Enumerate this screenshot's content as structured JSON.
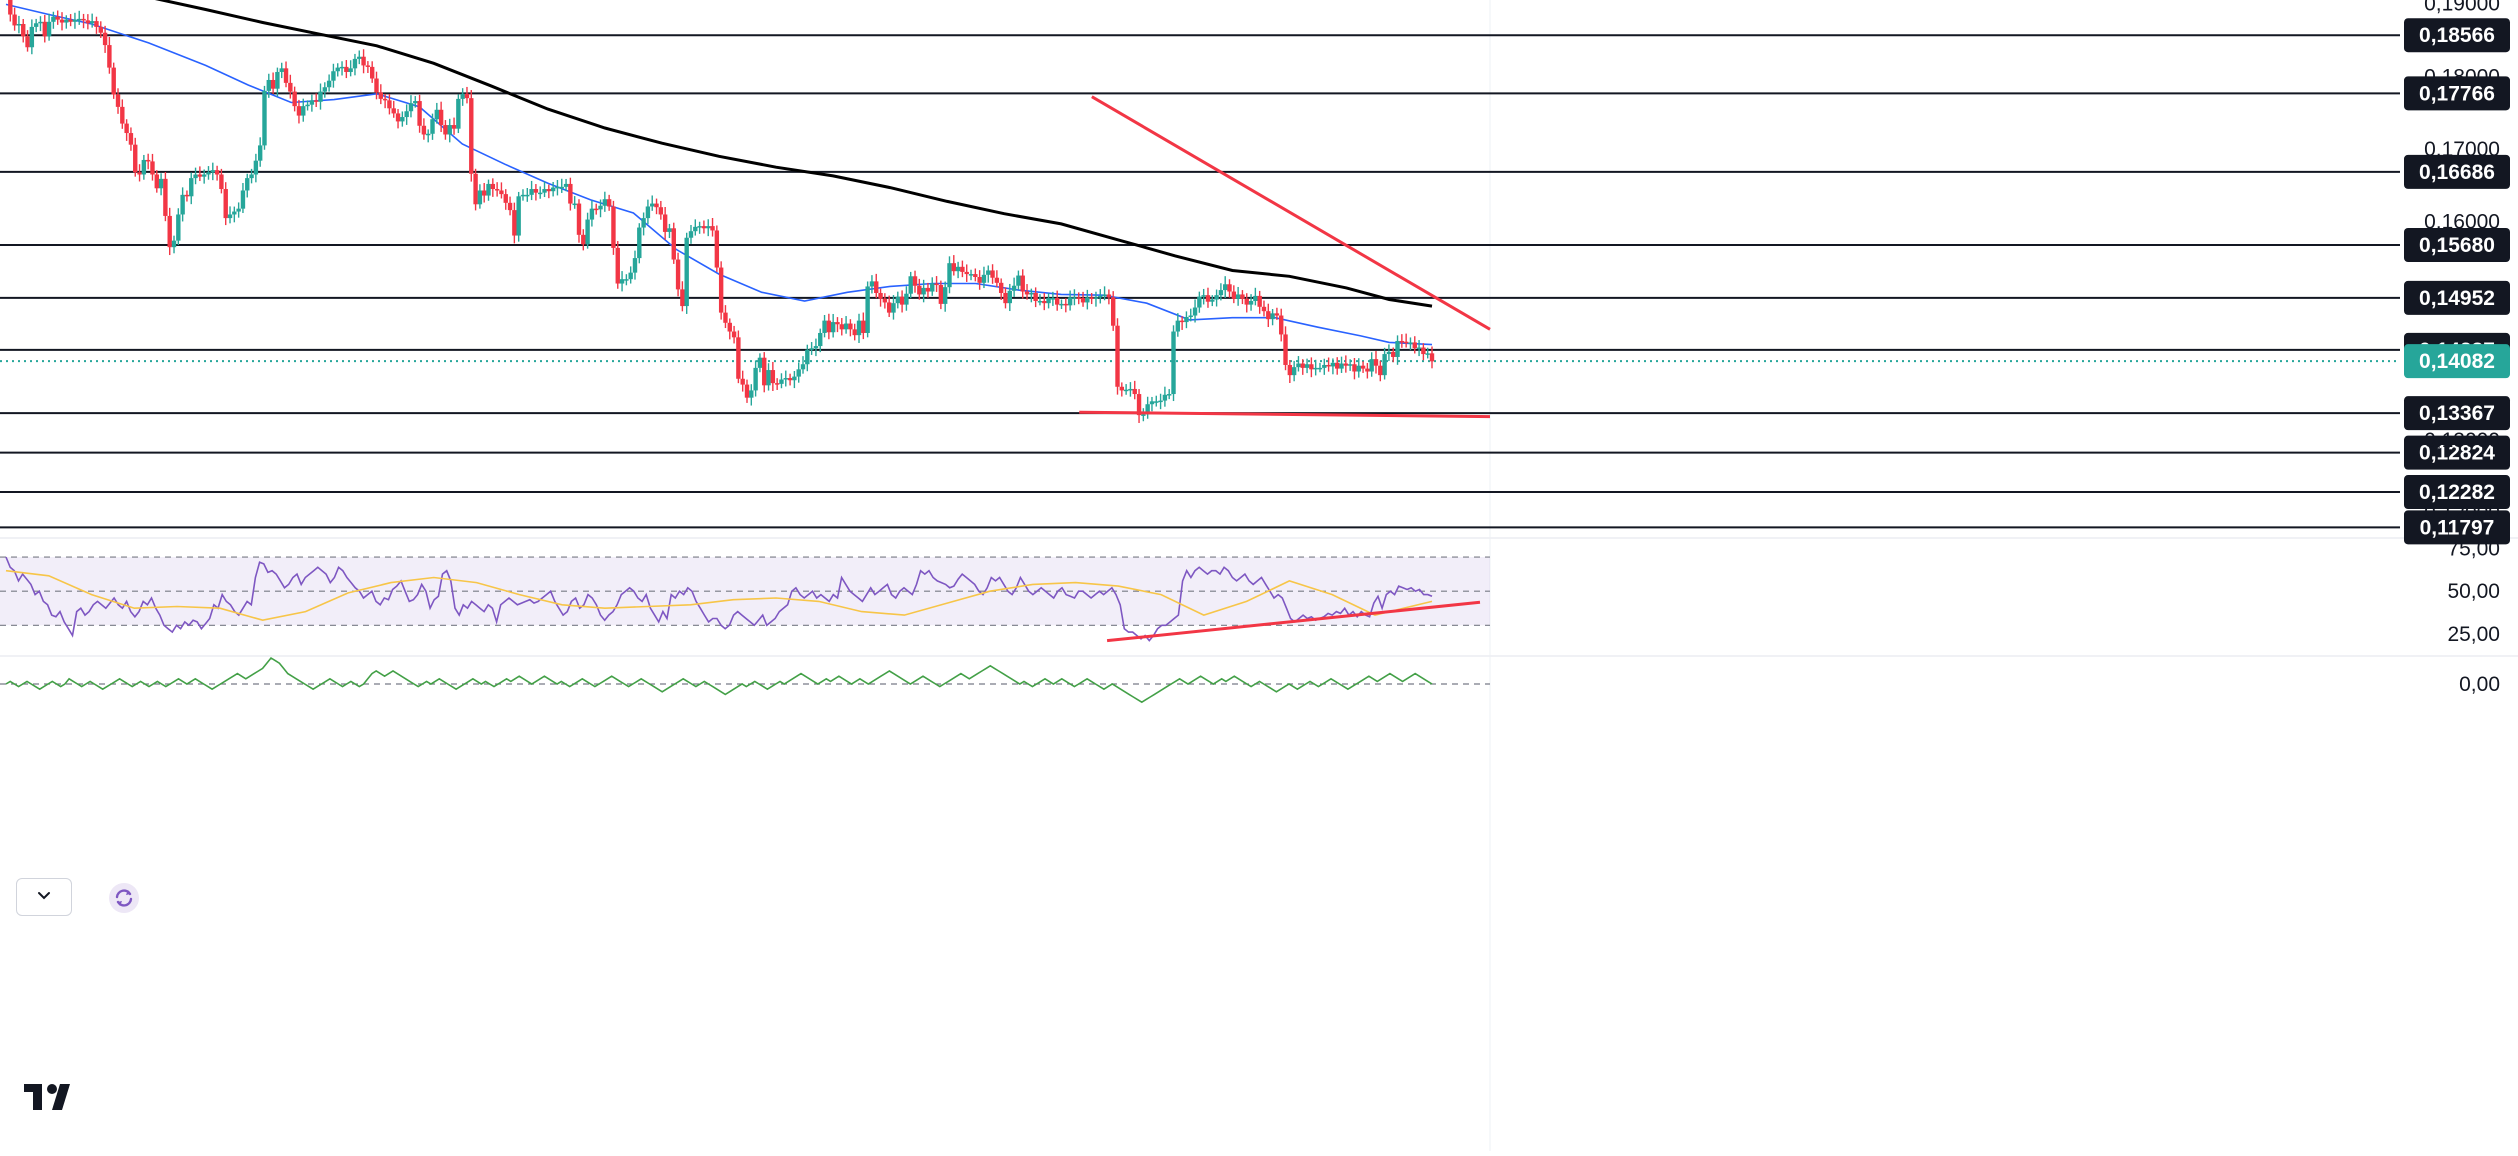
{
  "chart_data": {
    "type": "candlestick",
    "price_axis": {
      "ticks": [
        "0,19000",
        "0,18000",
        "0,17000",
        "0,16000",
        "0,13000",
        "0,12000"
      ],
      "tick_values": [
        0.19,
        0.18,
        0.17,
        0.16,
        0.13,
        0.12
      ],
      "ylim": [
        0.1165,
        0.1905
      ]
    },
    "horizontal_levels": [
      {
        "label": "0,18566",
        "value": 0.18566
      },
      {
        "label": "0,17766",
        "value": 0.17766
      },
      {
        "label": "0,16686",
        "value": 0.16686
      },
      {
        "label": "0,15680",
        "value": 0.1568
      },
      {
        "label": "0,14952",
        "value": 0.14952
      },
      {
        "label": "0,14237",
        "value": 0.14237
      },
      {
        "label": "0,13367",
        "value": 0.13367
      },
      {
        "label": "0,12824",
        "value": 0.12824
      },
      {
        "label": "0,12282",
        "value": 0.12282
      },
      {
        "label": "0,11797",
        "value": 0.11797
      }
    ],
    "last_price": {
      "label": "0,14082",
      "value": 0.14082,
      "color": "#26a69a"
    },
    "price_series": [
      0.1905,
      0.1885,
      0.187,
      0.1872,
      0.1855,
      0.184,
      0.1868,
      0.1873,
      0.1875,
      0.1855,
      0.1875,
      0.1882,
      0.1878,
      0.1874,
      0.1878,
      0.1875,
      0.1878,
      0.1879,
      0.1877,
      0.1873,
      0.1876,
      0.1868,
      0.186,
      0.1843,
      0.1812,
      0.1775,
      0.1758,
      0.1735,
      0.1722,
      0.1706,
      0.1668,
      0.1665,
      0.1685,
      0.1683,
      0.1665,
      0.1646,
      0.1659,
      0.1608,
      0.1565,
      0.1574,
      0.161,
      0.1637,
      0.1635,
      0.166,
      0.1665,
      0.1662,
      0.1665,
      0.1668,
      0.1671,
      0.1665,
      0.1645,
      0.1605,
      0.161,
      0.1614,
      0.1618,
      0.1643,
      0.166,
      0.1665,
      0.1684,
      0.1705,
      0.178,
      0.1795,
      0.1783,
      0.1806,
      0.1811,
      0.1791,
      0.1779,
      0.1759,
      0.1746,
      0.1759,
      0.1761,
      0.1767,
      0.1765,
      0.1779,
      0.1785,
      0.1794,
      0.1807,
      0.1812,
      0.1813,
      0.1806,
      0.1811,
      0.1824,
      0.1827,
      0.1815,
      0.1813,
      0.1797,
      0.1778,
      0.1769,
      0.1767,
      0.1756,
      0.1749,
      0.1738,
      0.1744,
      0.1752,
      0.1763,
      0.1766,
      0.1732,
      0.172,
      0.1721,
      0.1741,
      0.1754,
      0.1733,
      0.172,
      0.1733,
      0.1728,
      0.1769,
      0.1776,
      0.177,
      0.1666,
      0.1624,
      0.1643,
      0.1636,
      0.1652,
      0.1645,
      0.1643,
      0.1638,
      0.1626,
      0.1616,
      0.1581,
      0.1635,
      0.1637,
      0.1637,
      0.1645,
      0.164,
      0.164,
      0.1645,
      0.1642,
      0.1647,
      0.1648,
      0.1648,
      0.1652,
      0.1625,
      0.1625,
      0.1582,
      0.1569,
      0.1603,
      0.1618,
      0.1617,
      0.1622,
      0.1631,
      0.1621,
      0.1564,
      0.1515,
      0.1521,
      0.1521,
      0.153,
      0.155,
      0.1592,
      0.1605,
      0.1621,
      0.1625,
      0.162,
      0.161,
      0.1586,
      0.1591,
      0.1548,
      0.1507,
      0.1484,
      0.1578,
      0.1587,
      0.1593,
      0.1594,
      0.1591,
      0.1594,
      0.1588,
      0.1537,
      0.1475,
      0.1461,
      0.1449,
      0.1441,
      0.1384,
      0.1376,
      0.1358,
      0.1368,
      0.1399,
      0.1413,
      0.1375,
      0.1396,
      0.1378,
      0.1377,
      0.1383,
      0.1385,
      0.1382,
      0.1387,
      0.1397,
      0.1404,
      0.1424,
      0.1426,
      0.1429,
      0.1447,
      0.1464,
      0.1448,
      0.1462,
      0.1459,
      0.1452,
      0.146,
      0.1452,
      0.1444,
      0.1464,
      0.1447,
      0.1511,
      0.1518,
      0.1502,
      0.1494,
      0.1489,
      0.1475,
      0.1488,
      0.1497,
      0.1486,
      0.1501,
      0.1525,
      0.1512,
      0.15,
      0.1509,
      0.1504,
      0.1515,
      0.1513,
      0.1487,
      0.151,
      0.1543,
      0.1532,
      0.1538,
      0.1531,
      0.1528,
      0.1528,
      0.1524,
      0.1516,
      0.1527,
      0.1533,
      0.1523,
      0.1516,
      0.1502,
      0.1488,
      0.1505,
      0.1512,
      0.1526,
      0.1504,
      0.15,
      0.1502,
      0.1491,
      0.1491,
      0.1488,
      0.1495,
      0.1495,
      0.1486,
      0.1487,
      0.1485,
      0.1496,
      0.1496,
      0.1495,
      0.1489,
      0.1496,
      0.1494,
      0.1496,
      0.1498,
      0.15,
      0.1496,
      0.1457,
      0.1373,
      0.1368,
      0.1369,
      0.137,
      0.1363,
      0.1334,
      0.1335,
      0.1349,
      0.1353,
      0.1353,
      0.1354,
      0.1362,
      0.1363,
      0.1449,
      0.1464,
      0.1462,
      0.1469,
      0.1471,
      0.1482,
      0.1497,
      0.1499,
      0.149,
      0.1493,
      0.1499,
      0.1506,
      0.1514,
      0.1504,
      0.1494,
      0.15,
      0.1494,
      0.1486,
      0.1491,
      0.1498,
      0.1483,
      0.1477,
      0.1466,
      0.1474,
      0.1471,
      0.1445,
      0.1403,
      0.1389,
      0.14,
      0.1405,
      0.1399,
      0.1404,
      0.1397,
      0.1399,
      0.1399,
      0.1403,
      0.1401,
      0.1406,
      0.1398,
      0.1405,
      0.1402,
      0.1404,
      0.1394,
      0.1402,
      0.1398,
      0.1394,
      0.1411,
      0.1402,
      0.1389,
      0.1418,
      0.1421,
      0.1414,
      0.1436,
      0.1435,
      0.1433,
      0.1434,
      0.1426,
      0.1427,
      0.1418,
      0.1419,
      0.1408
    ],
    "moving_averages": [
      {
        "color": "#2962ff",
        "x": [
          0.0,
          0.03,
          0.06,
          0.1,
          0.14,
          0.17,
          0.2,
          0.23,
          0.26,
          0.29,
          0.32,
          0.35,
          0.38,
          0.41,
          0.44,
          0.47,
          0.5,
          0.53,
          0.56,
          0.59,
          0.62,
          0.65,
          0.68,
          0.71,
          0.74,
          0.77,
          0.8,
          0.83,
          0.86,
          0.89,
          0.92,
          0.95,
          0.97,
          1.0
        ],
        "values": [
          0.1899,
          0.1885,
          0.1872,
          0.1846,
          0.1815,
          0.1788,
          0.1764,
          0.1768,
          0.1776,
          0.1758,
          0.1707,
          0.1679,
          0.1653,
          0.163,
          0.1612,
          0.1562,
          0.1528,
          0.1503,
          0.1491,
          0.1503,
          0.1511,
          0.1515,
          0.1515,
          0.1506,
          0.15,
          0.1499,
          0.1488,
          0.1465,
          0.1468,
          0.1468,
          0.1455,
          0.1443,
          0.1434,
          0.1431
        ]
      },
      {
        "color": "#000000",
        "x": [
          0.0,
          0.03,
          0.06,
          0.1,
          0.14,
          0.18,
          0.22,
          0.26,
          0.3,
          0.34,
          0.38,
          0.42,
          0.46,
          0.5,
          0.54,
          0.58,
          0.62,
          0.66,
          0.7,
          0.74,
          0.78,
          0.82,
          0.86,
          0.9,
          0.94,
          0.97,
          1.0
        ],
        "values": [
          0.1957,
          0.1938,
          0.1925,
          0.1909,
          0.1892,
          0.1874,
          0.1858,
          0.1842,
          0.1818,
          0.1787,
          0.1755,
          0.1729,
          0.1708,
          0.169,
          0.1675,
          0.1663,
          0.1647,
          0.1628,
          0.1611,
          0.1597,
          0.1575,
          0.1553,
          0.1533,
          0.1525,
          0.1509,
          0.1493,
          0.1484
        ]
      }
    ],
    "trendlines": [
      {
        "color": "#f23645",
        "points": [
          [
            0.368,
            0.1772
          ],
          [
            1.0,
            0.1452
          ]
        ]
      },
      {
        "color": "#f23645",
        "points": [
          [
            0.348,
            0.1338
          ],
          [
            1.0,
            0.1332
          ]
        ]
      }
    ],
    "rsi_panel": {
      "ticks": [
        "75,00",
        "50,00",
        "25,00"
      ],
      "tick_values": [
        75,
        50,
        25
      ],
      "ylim": [
        12,
        80
      ],
      "band_values": [
        70,
        50,
        30
      ],
      "band_color": "#7e57c2",
      "rsi_line": {
        "color": "#7e57c2",
        "values": [
          70,
          64,
          62,
          56,
          60,
          57,
          54,
          48,
          50,
          44,
          42,
          36,
          35,
          38,
          32,
          28,
          24,
          38,
          40,
          36,
          38,
          42,
          44,
          42,
          40,
          43,
          46,
          42,
          40,
          44,
          38,
          35,
          38,
          44,
          42,
          46,
          40,
          36,
          30,
          28,
          26,
          30,
          28,
          32,
          30,
          33,
          32,
          28,
          31,
          34,
          42,
          40,
          48,
          44,
          42,
          38,
          36,
          40,
          44,
          42,
          58,
          67,
          66,
          61,
          62,
          60,
          56,
          52,
          54,
          58,
          60,
          54,
          58,
          60,
          62,
          64,
          62,
          60,
          55,
          58,
          64,
          62,
          58,
          55,
          52,
          50,
          46,
          48,
          50,
          44,
          42,
          46,
          45,
          51,
          53,
          56,
          50,
          44,
          45,
          48,
          54,
          50,
          40,
          45,
          47,
          60,
          62,
          56,
          40,
          36,
          42,
          40,
          44,
          42,
          40,
          38,
          42,
          40,
          32,
          42,
          44,
          46,
          44,
          42,
          43,
          44,
          45,
          43,
          44,
          46,
          48,
          50,
          44,
          40,
          36,
          38,
          44,
          46,
          40,
          42,
          48,
          46,
          42,
          36,
          33,
          36,
          38,
          42,
          48,
          50,
          52,
          50,
          46,
          44,
          48,
          40,
          36,
          32,
          38,
          34,
          48,
          46,
          50,
          48,
          52,
          50,
          44,
          40,
          36,
          32,
          34,
          34,
          30,
          28,
          30,
          36,
          38,
          36,
          34,
          32,
          30,
          33,
          36,
          30,
          32,
          34,
          38,
          40,
          42,
          50,
          52,
          48,
          46,
          48,
          50,
          46,
          48,
          46,
          44,
          48,
          46,
          58,
          54,
          50,
          48,
          46,
          44,
          48,
          52,
          48,
          50,
          52,
          54,
          48,
          46,
          50,
          52,
          50,
          48,
          54,
          62,
          60,
          62,
          58,
          56,
          55,
          54,
          52,
          53,
          57,
          60,
          58,
          56,
          54,
          50,
          48,
          52,
          58,
          56,
          58,
          54,
          50,
          48,
          52,
          58,
          54,
          50,
          48,
          50,
          52,
          50,
          48,
          46,
          50,
          52,
          48,
          47,
          46,
          50,
          50,
          48,
          46,
          48,
          50,
          48,
          50,
          52,
          48,
          42,
          28,
          26,
          26,
          24,
          22,
          24,
          21,
          24,
          28,
          30,
          30,
          32,
          34,
          36,
          56,
          62,
          58,
          62,
          64,
          62,
          60,
          62,
          62,
          60,
          64,
          62,
          58,
          56,
          58,
          60,
          56,
          54,
          56,
          58,
          54,
          50,
          46,
          48,
          46,
          40,
          34,
          32,
          34,
          36,
          34,
          35,
          33,
          34,
          35,
          37,
          36,
          38,
          37,
          40,
          36,
          38,
          35,
          38,
          36,
          35,
          43,
          47,
          40,
          48,
          50,
          48,
          53,
          52,
          51,
          52,
          50,
          51,
          48,
          48,
          47
        ]
      },
      "signal_line": {
        "color": "#f7c548",
        "x": [
          0.0,
          0.03,
          0.06,
          0.09,
          0.12,
          0.15,
          0.18,
          0.21,
          0.24,
          0.27,
          0.3,
          0.33,
          0.36,
          0.39,
          0.42,
          0.45,
          0.48,
          0.51,
          0.54,
          0.57,
          0.6,
          0.63,
          0.66,
          0.69,
          0.72,
          0.75,
          0.78,
          0.81,
          0.84,
          0.87,
          0.9,
          0.93,
          0.96,
          1.0
        ],
        "values": [
          62,
          59,
          48,
          40,
          41,
          40,
          33,
          38,
          49,
          55,
          58,
          55,
          48,
          42,
          40,
          41,
          42,
          45,
          46,
          44,
          38,
          36,
          43,
          50,
          54,
          55,
          53,
          48,
          36,
          44,
          56,
          48,
          36,
          44
        ]
      },
      "trendline": {
        "color": "#f23645",
        "points": [
          [
            0.747,
            21
          ],
          [
            1.0,
            43.5
          ]
        ]
      }
    },
    "third_panel": {
      "zero_tick": "0,00",
      "line": {
        "color": "#43a047",
        "values": [
          0,
          1,
          0,
          -1,
          0,
          1,
          0,
          -1,
          -2,
          -1,
          0,
          1,
          0,
          -1,
          0,
          2,
          1,
          0,
          -1,
          0,
          1,
          0,
          -1,
          -2,
          -1,
          0,
          1,
          2,
          1,
          0,
          -1,
          0,
          1,
          0,
          -1,
          0,
          1,
          0,
          -1,
          0,
          1,
          2,
          1,
          0,
          1,
          2,
          1,
          0,
          -1,
          -2,
          -1,
          0,
          1,
          2,
          3,
          4,
          3,
          2,
          3,
          4,
          5,
          6,
          8,
          10,
          9,
          8,
          6,
          4,
          3,
          2,
          1,
          0,
          -1,
          -2,
          -1,
          0,
          1,
          2,
          1,
          0,
          -1,
          0,
          1,
          0,
          -1,
          0,
          2,
          4,
          5,
          4,
          3,
          4,
          5,
          4,
          3,
          2,
          1,
          0,
          -1,
          0,
          1,
          0,
          1,
          2,
          1,
          0,
          -1,
          -2,
          -1,
          0,
          1,
          2,
          1,
          0,
          1,
          0,
          -1,
          0,
          1,
          2,
          1,
          2,
          3,
          2,
          1,
          0,
          1,
          2,
          3,
          2,
          1,
          0,
          1,
          0,
          -1,
          0,
          1,
          2,
          1,
          0,
          -1,
          0,
          1,
          2,
          3,
          2,
          1,
          0,
          -1,
          0,
          1,
          2,
          1,
          0,
          -1,
          -2,
          -3,
          -2,
          -1,
          0,
          1,
          2,
          1,
          0,
          -1,
          0,
          1,
          0,
          -1,
          -2,
          -3,
          -4,
          -3,
          -2,
          -1,
          0,
          -1,
          0,
          1,
          0,
          -1,
          -2,
          -1,
          0,
          1,
          0,
          1,
          2,
          3,
          4,
          3,
          2,
          1,
          0,
          1,
          2,
          1,
          2,
          3,
          2,
          1,
          0,
          1,
          2,
          1,
          0,
          1,
          2,
          3,
          4,
          5,
          4,
          3,
          2,
          1,
          0,
          1,
          2,
          3,
          2,
          1,
          0,
          -1,
          0,
          1,
          2,
          3,
          4,
          3,
          2,
          3,
          4,
          5,
          6,
          7,
          6,
          5,
          4,
          3,
          2,
          1,
          0,
          1,
          0,
          -1,
          0,
          1,
          2,
          1,
          0,
          1,
          2,
          1,
          0,
          -1,
          0,
          1,
          2,
          1,
          0,
          -1,
          -2,
          -1,
          0,
          -1,
          -2,
          -3,
          -4,
          -5,
          -6,
          -7,
          -6,
          -5,
          -4,
          -3,
          -2,
          -1,
          0,
          1,
          2,
          1,
          0,
          1,
          2,
          3,
          2,
          1,
          0,
          1,
          2,
          1,
          2,
          3,
          2,
          1,
          0,
          -1,
          0,
          1,
          0,
          -1,
          -2,
          -3,
          -2,
          -1,
          0,
          -1,
          -2,
          -1,
          0,
          1,
          0,
          -1,
          0,
          1,
          2,
          1,
          0,
          -1,
          -2,
          -1,
          0,
          1,
          2,
          3,
          2,
          1,
          2,
          3,
          4,
          3,
          2,
          1,
          2,
          3,
          4,
          3,
          2,
          1,
          0
        ]
      }
    }
  }
}
